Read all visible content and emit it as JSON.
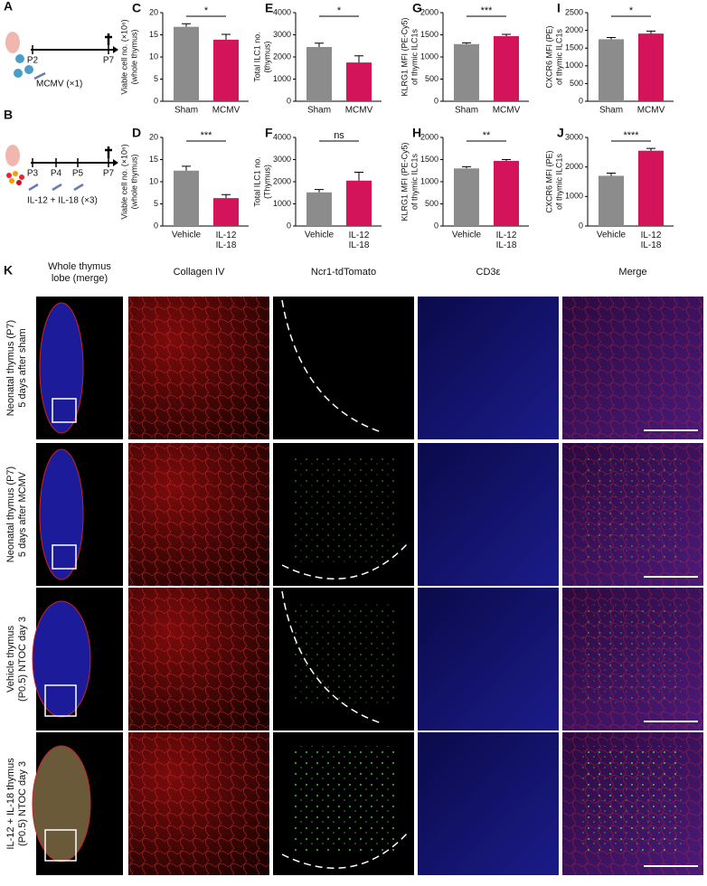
{
  "chart_data": [
    {
      "type": "bar",
      "label": "C",
      "ylabel": [
        "Viable cell no. (×10⁶)",
        "(whole thymus)"
      ],
      "categories": [
        "Sham",
        "MCMV"
      ],
      "values": [
        16.8,
        13.9
      ],
      "errors": [
        0.7,
        1.2
      ],
      "colors": [
        "#8c8c8c",
        "#d4145a"
      ],
      "significance": "*",
      "ylim": [
        0,
        20
      ],
      "yticks": [
        0,
        5,
        10,
        15,
        20
      ]
    },
    {
      "type": "bar",
      "label": "E",
      "ylabel": [
        "Total ILC1 no.",
        "(thymus)"
      ],
      "categories": [
        "Sham",
        "MCMV"
      ],
      "values": [
        2450,
        1750
      ],
      "errors": [
        170,
        300
      ],
      "colors": [
        "#8c8c8c",
        "#d4145a"
      ],
      "significance": "*",
      "ylim": [
        0,
        4000
      ],
      "yticks": [
        0,
        1000,
        2000,
        3000,
        4000
      ]
    },
    {
      "type": "bar",
      "label": "G",
      "ylabel": [
        "KLRG1 MFI (PE-Cy5)",
        "of thymic ILC1s"
      ],
      "categories": [
        "Sham",
        "MCMV"
      ],
      "values": [
        1290,
        1470
      ],
      "errors": [
        30,
        40
      ],
      "colors": [
        "#8c8c8c",
        "#d4145a"
      ],
      "significance": "***",
      "ylim": [
        0,
        2000
      ],
      "yticks": [
        0,
        500,
        1000,
        1500,
        2000
      ]
    },
    {
      "type": "bar",
      "label": "I",
      "ylabel": [
        "CXCR6 MFI (PE)",
        "of thymic ILC1s"
      ],
      "categories": [
        "Sham",
        "MCMV"
      ],
      "values": [
        1750,
        1910
      ],
      "errors": [
        50,
        70
      ],
      "colors": [
        "#8c8c8c",
        "#d4145a"
      ],
      "significance": "*",
      "ylim": [
        0,
        2500
      ],
      "yticks": [
        0,
        500,
        1000,
        1500,
        2000,
        2500
      ]
    },
    {
      "type": "bar",
      "label": "D",
      "ylabel": [
        "Viable cell no. (×10⁶)",
        "(whole thymus)"
      ],
      "categories": [
        "Vehicle",
        "IL-12 IL-18"
      ],
      "values": [
        12.5,
        6.3
      ],
      "errors": [
        1.0,
        0.8
      ],
      "colors": [
        "#8c8c8c",
        "#d4145a"
      ],
      "significance": "***",
      "ylim": [
        0,
        20
      ],
      "yticks": [
        0,
        5,
        10,
        15,
        20
      ]
    },
    {
      "type": "bar",
      "label": "F",
      "ylabel": [
        "Total ILC1 no.",
        "(Thymus)"
      ],
      "categories": [
        "Vehicle",
        "IL-12 IL-18"
      ],
      "values": [
        1520,
        2050
      ],
      "errors": [
        130,
        380
      ],
      "colors": [
        "#8c8c8c",
        "#d4145a"
      ],
      "significance": "ns",
      "ylim": [
        0,
        4000
      ],
      "yticks": [
        0,
        1000,
        2000,
        3000,
        4000
      ]
    },
    {
      "type": "bar",
      "label": "H",
      "ylabel": [
        "KLRG1 MFI (PE-Cy5)",
        "of thymic ILC1s"
      ],
      "categories": [
        "Vehicle",
        "IL-12 IL-18"
      ],
      "values": [
        1300,
        1470
      ],
      "errors": [
        40,
        30
      ],
      "colors": [
        "#8c8c8c",
        "#d4145a"
      ],
      "significance": "**",
      "ylim": [
        0,
        2000
      ],
      "yticks": [
        0,
        500,
        1000,
        1500,
        2000
      ]
    },
    {
      "type": "bar",
      "label": "J",
      "ylabel": [
        "CXCR6 MFI (PE)",
        "of thymic ILC1s"
      ],
      "categories": [
        "Vehicle",
        "IL-12 IL-18"
      ],
      "values": [
        1700,
        2550
      ],
      "errors": [
        90,
        80
      ],
      "colors": [
        "#8c8c8c",
        "#d4145a"
      ],
      "significance": "****",
      "ylim": [
        0,
        3000
      ],
      "yticks": [
        0,
        1000,
        2000,
        3000
      ]
    }
  ],
  "panel_a": {
    "label": "A",
    "timepoints": [
      "P2",
      "P7"
    ],
    "treatment": "MCMV (×1)"
  },
  "panel_b": {
    "label": "B",
    "timepoints": [
      "P3",
      "P4",
      "P5",
      "P7"
    ],
    "treatment": "IL-12 + IL-18 (×3)"
  },
  "panel_k": {
    "label": "K",
    "columns": [
      [
        "Whole thymus",
        "lobe (merge)"
      ],
      [
        "Collagen IV"
      ],
      [
        "Ncr1-tdTomato"
      ],
      [
        "CD3ε"
      ],
      [
        "Merge"
      ]
    ],
    "rows": [
      [
        "Neonatal thymus (P7)",
        "5 days after sham"
      ],
      [
        "Neonatal thymus (P7)",
        "5 days after MCMV"
      ],
      [
        "Vehicle thymus",
        "(P0.5) NTOC day 3"
      ],
      [
        "IL-12 + IL-18 thymus",
        "(P0.5) NTOC day 3"
      ]
    ]
  }
}
